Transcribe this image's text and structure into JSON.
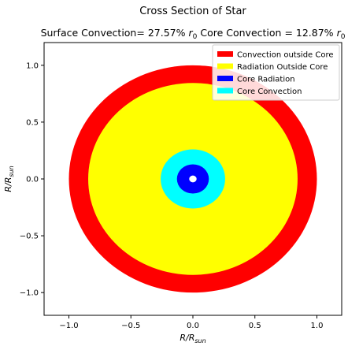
{
  "chart_data": {
    "type": "pie",
    "suptitle": "Cross Section of Star",
    "title": {
      "surface_label": "Surface Convection= ",
      "surface_value": "27.57%",
      "core_label": "Core Convection = ",
      "core_value": "12.87%",
      "r0_symbol": "r",
      "r0_subscript": "0"
    },
    "xlabel": {
      "main": "R/R",
      "sub": "sun"
    },
    "ylabel": {
      "main": "R/R",
      "sub": "sun"
    },
    "xlim": [
      -1.2,
      1.2
    ],
    "ylim": [
      -1.2,
      1.2
    ],
    "xticks": [
      -1.0,
      -0.5,
      0.0,
      0.5,
      1.0
    ],
    "yticks": [
      -1.0,
      -0.5,
      0.0,
      0.5,
      1.0
    ],
    "xtick_labels": [
      "−1.0",
      "−0.5",
      "0.0",
      "0.5",
      "1.0"
    ],
    "ytick_labels": [
      "−1.0",
      "−0.5",
      "0.0",
      "0.5",
      "1.0"
    ],
    "grid": false,
    "legend_position": "upper-right",
    "rings": [
      {
        "key": "conv_out",
        "name": "Convection outside Core",
        "outer_radius": 1.0,
        "color": "#ff0000"
      },
      {
        "key": "rad_out",
        "name": "Radiation Outside Core",
        "outer_radius": 0.8443,
        "color": "#ffff00"
      },
      {
        "key": "core_conv",
        "name": "Core Convection",
        "outer_radius": 0.26,
        "color": "#00ffff"
      },
      {
        "key": "core_rad",
        "name": "Core Radiation",
        "outer_radius": 0.1287,
        "color": "#0000ff"
      },
      {
        "key": "center",
        "name": "",
        "outer_radius": 0.03,
        "color": "#ffffff"
      }
    ],
    "legend": [
      {
        "label": "Convection outside Core",
        "color": "#ff0000"
      },
      {
        "label": "Radiation Outside Core",
        "color": "#ffff00"
      },
      {
        "label": "Core Radiation",
        "color": "#0000ff"
      },
      {
        "label": "Core Convection",
        "color": "#00ffff"
      }
    ]
  }
}
